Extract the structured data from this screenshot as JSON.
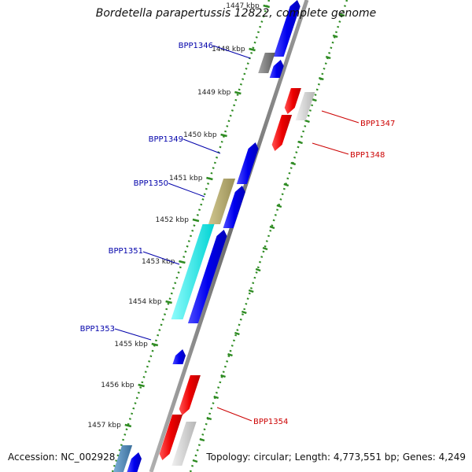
{
  "title": "Bordetella parapertussis 12822, complete genome",
  "accession": "Accession: NC_002928",
  "summary": "Topology: circular; Length: 4,773,551 bp; Genes: 4,249",
  "colors": {
    "backbone": "#7d7d7d",
    "tick": "#2e8b22",
    "forward_gene": "#0000ee",
    "reverse_gene": "#ee0000",
    "label_forward": "#0000aa",
    "label_reverse": "#cc0000",
    "gray_gene": "#8a8a8a",
    "lightgray_gene": "#cfcfcf",
    "olive_gene": "#b3a96b",
    "cyan_gene": "#00f0f0",
    "steel_gene": "#4a86b8"
  },
  "kbp_labels": [
    "1447 kbp",
    "1448 kbp",
    "1449 kbp",
    "1450 kbp",
    "1451 kbp",
    "1452 kbp",
    "1453 kbp",
    "1454 kbp",
    "1455 kbp",
    "1456 kbp",
    "1457 kbp"
  ],
  "gene_labels": {
    "BPP1346": "BPP1346",
    "BPP1347": "BPP1347",
    "BPP1348": "BPP1348",
    "BPP1349": "BPP1349",
    "BPP1350": "BPP1350",
    "BPP1351": "BPP1351",
    "BPP1353": "BPP1353",
    "BPP1354": "BPP1354"
  }
}
